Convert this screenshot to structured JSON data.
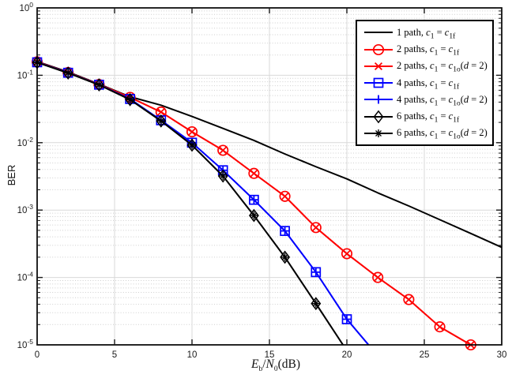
{
  "chart_data": {
    "type": "line",
    "title": "",
    "xlabel": "E_{b}/N_{0}(dB)",
    "ylabel": "BER",
    "x_axis": {
      "min": 0,
      "max": 30,
      "ticks": [
        0,
        5,
        10,
        15,
        20,
        25,
        30
      ]
    },
    "y_axis": {
      "scale": "log",
      "min": 1e-05,
      "max": 1,
      "tick_exponents": [
        0,
        -1,
        -2,
        -3,
        -4,
        -5
      ]
    },
    "grid": {
      "major": true,
      "minor_horizontal_dotted": true
    },
    "legend_position": "top-right",
    "colors": {
      "red": "#ff0000",
      "blue": "#0000ff",
      "black": "#000000",
      "grid_major": "#d9d9d9",
      "grid_minor": "#cfcfcf",
      "axis": "#1a1a1a"
    },
    "series": [
      {
        "label": "1 path, c_{1} = c_{1f}",
        "color": "#000000",
        "marker": "none",
        "linewidth": 2,
        "x": [
          0,
          2,
          4,
          6,
          8,
          10,
          12,
          14,
          16,
          18,
          20,
          22,
          24,
          26,
          28,
          30
        ],
        "y": [
          0.16,
          0.112,
          0.074,
          0.048,
          0.036,
          0.0245,
          0.0163,
          0.0108,
          0.0068,
          0.0044,
          0.0029,
          0.0018,
          0.00115,
          0.00072,
          0.00045,
          0.00028
        ]
      },
      {
        "label": "2 paths, c_{1} = c_{1f}",
        "color": "#ff0000",
        "marker": "circle",
        "linewidth": 1.9,
        "x": [
          0,
          2,
          4,
          6,
          8,
          10,
          12,
          14,
          16,
          18,
          20,
          22,
          24,
          26,
          28
        ],
        "y": [
          0.158,
          0.11,
          0.073,
          0.047,
          0.0285,
          0.0145,
          0.0077,
          0.0035,
          0.0016,
          0.00055,
          0.000225,
          0.0001,
          4.7e-05,
          1.85e-05,
          1e-05
        ]
      },
      {
        "label": "2 paths, c_{1} = c_{1o}(d = 2)",
        "color": "#ff0000",
        "marker": "x",
        "linewidth": 1.9,
        "x": [
          0,
          2,
          4,
          6,
          8,
          10,
          12,
          14,
          16,
          18,
          20,
          22,
          24,
          26,
          28
        ],
        "y": [
          0.158,
          0.11,
          0.073,
          0.047,
          0.0285,
          0.0145,
          0.0077,
          0.0035,
          0.0016,
          0.00055,
          0.000225,
          0.0001,
          4.7e-05,
          1.85e-05,
          1e-05
        ]
      },
      {
        "label": "4 paths, c_{1} = c_{1f}",
        "color": "#0000ff",
        "marker": "square",
        "linewidth": 1.9,
        "x": [
          0,
          2,
          4,
          6,
          8,
          10,
          12,
          14,
          16,
          18,
          20
        ],
        "y": [
          0.156,
          0.109,
          0.0725,
          0.0445,
          0.0215,
          0.01,
          0.0039,
          0.00142,
          0.00049,
          0.00012,
          2.4e-05
        ],
        "tail": [
          [
            21.4,
            1e-05
          ]
        ]
      },
      {
        "label": "4 paths, c_{1} = c_{1o}(d = 2)",
        "color": "#0000ff",
        "marker": "plus",
        "linewidth": 1.9,
        "x": [
          0,
          2,
          4,
          6,
          8,
          10,
          12,
          14,
          16,
          18,
          20
        ],
        "y": [
          0.156,
          0.109,
          0.0725,
          0.0445,
          0.0215,
          0.01,
          0.0039,
          0.00142,
          0.00049,
          0.00012,
          2.4e-05
        ],
        "tail": [
          [
            21.4,
            1e-05
          ]
        ]
      },
      {
        "label": "6 paths, c_{1} = c_{1f}",
        "color": "#000000",
        "marker": "diamond",
        "linewidth": 1.9,
        "x": [
          0,
          2,
          4,
          6,
          8,
          10,
          12,
          14,
          16,
          18
        ],
        "y": [
          0.155,
          0.108,
          0.072,
          0.0435,
          0.021,
          0.0092,
          0.0032,
          0.00083,
          0.0002,
          4.1e-05
        ],
        "tail": [
          [
            19.75,
            1e-05
          ]
        ]
      },
      {
        "label": "6 paths, c_{1} = c_{1o}(d = 2)",
        "color": "#000000",
        "marker": "asterisk",
        "linewidth": 1.9,
        "x": [
          0,
          2,
          4,
          6,
          8,
          10,
          12,
          14,
          16,
          18
        ],
        "y": [
          0.155,
          0.108,
          0.072,
          0.0435,
          0.021,
          0.0092,
          0.0032,
          0.00083,
          0.0002,
          4.1e-05
        ],
        "tail": [
          [
            19.75,
            1e-05
          ]
        ]
      }
    ]
  }
}
